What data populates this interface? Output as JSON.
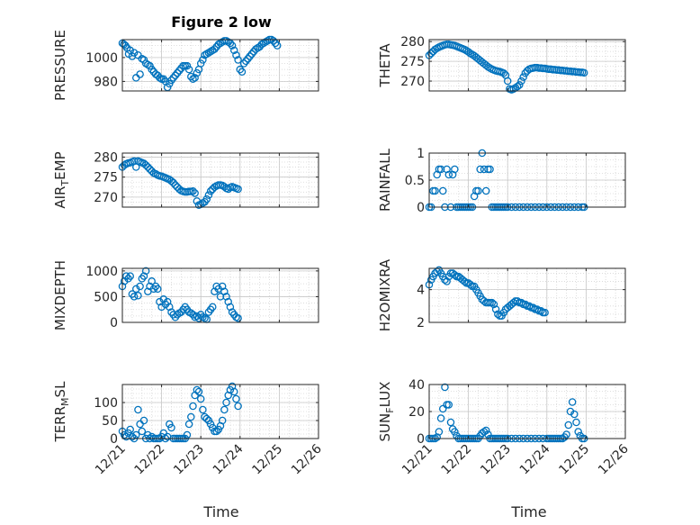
{
  "figure": {
    "title": "Figure 2 low",
    "xlabel": "Time",
    "marker_color": "#0072BD"
  },
  "chart_data": [
    {
      "type": "scatter",
      "name": "pressure",
      "ylabel": "PRESSURE",
      "title": "Figure 2 low",
      "xlim": [
        "12/21",
        "12/26"
      ],
      "ylim": [
        972,
        1015
      ],
      "yticks": [
        980,
        1000
      ],
      "ytick_labels": [
        "980",
        "1000"
      ],
      "xtick_labels": [],
      "x": [
        0.0,
        0.04,
        0.08,
        0.12,
        0.16,
        0.2,
        0.25,
        0.3,
        0.35,
        0.4,
        0.45,
        0.5,
        0.55,
        0.6,
        0.65,
        0.7,
        0.75,
        0.8,
        0.85,
        0.9,
        0.95,
        1.0,
        1.05,
        1.1,
        1.15,
        1.2,
        1.25,
        1.3,
        1.35,
        1.4,
        1.45,
        1.5,
        1.55,
        1.6,
        1.65,
        1.7,
        1.75,
        1.8,
        1.85,
        1.9,
        1.95,
        2.0,
        2.05,
        2.1,
        2.15,
        2.2,
        2.25,
        2.3,
        2.35,
        2.4,
        2.45,
        2.5,
        2.55,
        2.6,
        2.65,
        2.7,
        2.75,
        2.8,
        2.85,
        2.9,
        2.95,
        3.0,
        3.05,
        3.1,
        3.15,
        3.2,
        3.25,
        3.3,
        3.35,
        3.4,
        3.45,
        3.5,
        3.55,
        3.6,
        3.65,
        3.7,
        3.75,
        3.8,
        3.85,
        3.9,
        3.95
      ],
      "y": [
        1012,
        1011,
        1010,
        1008,
        1003,
        1006,
        1001,
        1004,
        983,
        1002,
        986,
        999,
        998,
        995,
        994,
        993,
        990,
        988,
        986,
        985,
        983,
        982,
        982,
        980,
        975,
        978,
        981,
        983,
        985,
        987,
        989,
        991,
        993,
        993,
        993,
        990,
        984,
        982,
        983,
        987,
        990,
        995,
        998,
        1002,
        1003,
        1004,
        1005,
        1006,
        1007,
        1009,
        1011,
        1012,
        1013,
        1014,
        1014,
        1013,
        1012,
        1010,
        1006,
        1002,
        998,
        990,
        988,
        995,
        997,
        999,
        1001,
        1003,
        1005,
        1007,
        1008,
        1009,
        1011,
        1012,
        1013,
        1014,
        1015,
        1015,
        1014,
        1012,
        1010
      ],
      "grid": true
    },
    {
      "type": "scatter",
      "name": "theta",
      "ylabel": "THETA",
      "xlim": [
        "12/21",
        "12/26"
      ],
      "ylim": [
        267.5,
        280.5
      ],
      "yticks": [
        270,
        275,
        280
      ],
      "ytick_labels": [
        "270",
        "275",
        "280"
      ],
      "xtick_labels": [],
      "x": [
        0.0,
        0.05,
        0.1,
        0.15,
        0.2,
        0.25,
        0.3,
        0.35,
        0.4,
        0.45,
        0.5,
        0.55,
        0.6,
        0.65,
        0.7,
        0.75,
        0.8,
        0.85,
        0.9,
        0.95,
        1.0,
        1.05,
        1.1,
        1.15,
        1.2,
        1.25,
        1.3,
        1.35,
        1.4,
        1.45,
        1.5,
        1.55,
        1.6,
        1.65,
        1.7,
        1.75,
        1.8,
        1.85,
        1.9,
        1.95,
        2.0,
        2.05,
        2.1,
        2.15,
        2.2,
        2.25,
        2.3,
        2.35,
        2.4,
        2.45,
        2.5,
        2.55,
        2.6,
        2.65,
        2.7,
        2.75,
        2.8,
        2.85,
        2.9,
        2.95,
        3.0,
        3.05,
        3.1,
        3.15,
        3.2,
        3.25,
        3.3,
        3.35,
        3.4,
        3.45,
        3.5,
        3.55,
        3.6,
        3.65,
        3.7,
        3.75,
        3.8,
        3.85,
        3.9,
        3.95
      ],
      "y": [
        276.5,
        277,
        277.5,
        278,
        278.3,
        278.6,
        278.8,
        279,
        279.2,
        279.3,
        279.3,
        279.2,
        279.1,
        279,
        278.8,
        278.6,
        278.4,
        278.2,
        278,
        277.7,
        277.4,
        277,
        276.7,
        276.4,
        276,
        275.6,
        275.2,
        274.8,
        274.4,
        274,
        273.6,
        273.3,
        273,
        272.8,
        272.6,
        272.5,
        272.4,
        272.2,
        272,
        271.5,
        270,
        268,
        267.8,
        268,
        268.3,
        268.6,
        269,
        270,
        271,
        272,
        272.6,
        273,
        273.2,
        273.3,
        273.4,
        273.4,
        273.3,
        273.3,
        273.2,
        273.2,
        273.1,
        273,
        273,
        272.9,
        272.9,
        272.8,
        272.8,
        272.7,
        272.7,
        272.6,
        272.6,
        272.5,
        272.5,
        272.4,
        272.4,
        272.3,
        272.3,
        272.2,
        272.2,
        272.1
      ],
      "grid": true
    },
    {
      "type": "scatter",
      "name": "airtemp",
      "ylabel": "AIR_TEMP",
      "xlim": [
        "12/21",
        "12/26"
      ],
      "ylim": [
        267.5,
        281
      ],
      "yticks": [
        270,
        275,
        280
      ],
      "ytick_labels": [
        "270",
        "275",
        "280"
      ],
      "xtick_labels": [],
      "x": [
        0.0,
        0.05,
        0.1,
        0.15,
        0.2,
        0.25,
        0.3,
        0.35,
        0.4,
        0.45,
        0.5,
        0.55,
        0.6,
        0.65,
        0.7,
        0.75,
        0.8,
        0.85,
        0.9,
        0.95,
        1.0,
        1.05,
        1.1,
        1.15,
        1.2,
        1.25,
        1.3,
        1.35,
        1.4,
        1.45,
        1.5,
        1.55,
        1.6,
        1.65,
        1.7,
        1.75,
        1.8,
        1.85,
        1.9,
        1.95,
        2.0,
        2.05,
        2.1,
        2.15,
        2.2,
        2.25,
        2.3,
        2.35,
        2.4,
        2.45,
        2.5,
        2.55,
        2.6,
        2.65,
        2.7,
        2.75,
        2.8,
        2.85,
        2.9,
        2.95
      ],
      "y": [
        277.5,
        278,
        278.3,
        278.5,
        278.6,
        278.8,
        279,
        277.5,
        279,
        278.8,
        278.6,
        278.4,
        278,
        277.5,
        277,
        276.5,
        276,
        275.8,
        275.5,
        275.3,
        275.2,
        275,
        274.8,
        274.6,
        274.4,
        274,
        273.6,
        273,
        272.5,
        272,
        271.6,
        271.4,
        271.3,
        271.3,
        271.4,
        271.4,
        271.5,
        271,
        269,
        268,
        268.2,
        268.5,
        268.8,
        269.5,
        270.5,
        271.5,
        272,
        272.5,
        272.8,
        273,
        273,
        272.9,
        272.6,
        272.2,
        272,
        272.4,
        272.6,
        272.4,
        272.2,
        272
      ],
      "grid": true
    },
    {
      "type": "scatter",
      "name": "rainfall",
      "ylabel": "RAINFALL",
      "xlim": [
        "12/21",
        "12/26"
      ],
      "ylim": [
        0,
        1
      ],
      "yticks": [
        0,
        0.5,
        1
      ],
      "ytick_labels": [
        "0",
        "0.5",
        "1"
      ],
      "xtick_labels": [],
      "x": [
        0.0,
        0.05,
        0.1,
        0.15,
        0.2,
        0.25,
        0.3,
        0.35,
        0.4,
        0.45,
        0.5,
        0.55,
        0.6,
        0.65,
        0.7,
        0.75,
        0.8,
        0.85,
        0.9,
        0.95,
        1.0,
        1.05,
        1.1,
        1.15,
        1.2,
        1.25,
        1.3,
        1.35,
        1.4,
        1.45,
        1.5,
        1.55,
        1.6,
        1.65,
        1.7,
        1.75,
        1.8,
        1.85,
        1.9,
        1.95,
        2.0,
        2.1,
        2.2,
        2.3,
        2.4,
        2.5,
        2.6,
        2.7,
        2.8,
        2.9,
        3.0,
        3.1,
        3.2,
        3.3,
        3.4,
        3.5,
        3.6,
        3.7,
        3.8,
        3.9,
        3.95
      ],
      "y": [
        0,
        0,
        0.3,
        0.3,
        0.6,
        0.7,
        0.7,
        0.3,
        0,
        0.7,
        0.6,
        0,
        0.6,
        0.7,
        0,
        0,
        0,
        0,
        0,
        0,
        0,
        0,
        0,
        0.2,
        0.3,
        0.3,
        0.7,
        1.0,
        0.7,
        0.3,
        0.7,
        0.7,
        0,
        0,
        0,
        0,
        0,
        0,
        0,
        0,
        0,
        0,
        0,
        0,
        0,
        0,
        0,
        0,
        0,
        0,
        0,
        0,
        0,
        0,
        0,
        0,
        0,
        0,
        0,
        0,
        0
      ],
      "grid": true
    },
    {
      "type": "scatter",
      "name": "mixdepth",
      "ylabel": "MIXDEPTH",
      "xlim": [
        "12/21",
        "12/26"
      ],
      "ylim": [
        0,
        1050
      ],
      "yticks": [
        0,
        500,
        1000
      ],
      "ytick_labels": [
        "0",
        "500",
        "1000"
      ],
      "xtick_labels": [],
      "x": [
        0.0,
        0.05,
        0.1,
        0.15,
        0.2,
        0.25,
        0.3,
        0.35,
        0.4,
        0.45,
        0.5,
        0.55,
        0.6,
        0.65,
        0.7,
        0.75,
        0.8,
        0.85,
        0.9,
        0.95,
        1.0,
        1.05,
        1.1,
        1.15,
        1.2,
        1.25,
        1.3,
        1.35,
        1.4,
        1.45,
        1.5,
        1.55,
        1.6,
        1.65,
        1.7,
        1.75,
        1.8,
        1.85,
        1.9,
        1.95,
        2.0,
        2.05,
        2.1,
        2.15,
        2.2,
        2.25,
        2.3,
        2.35,
        2.4,
        2.45,
        2.5,
        2.55,
        2.6,
        2.65,
        2.7,
        2.75,
        2.8,
        2.85,
        2.9,
        2.95
      ],
      "y": [
        700,
        800,
        900,
        850,
        900,
        550,
        500,
        650,
        520,
        700,
        850,
        900,
        1000,
        600,
        700,
        800,
        650,
        700,
        650,
        400,
        300,
        450,
        350,
        400,
        300,
        200,
        150,
        100,
        150,
        180,
        200,
        250,
        300,
        250,
        200,
        180,
        150,
        100,
        120,
        80,
        150,
        100,
        80,
        60,
        200,
        250,
        300,
        600,
        700,
        650,
        500,
        700,
        600,
        500,
        400,
        300,
        200,
        150,
        100,
        80
      ],
      "grid": true
    },
    {
      "type": "scatter",
      "name": "h2omixra",
      "ylabel": "H2OMIXRA",
      "xlim": [
        "12/21",
        "12/26"
      ],
      "ylim": [
        2,
        5.3
      ],
      "yticks": [
        2,
        4
      ],
      "ytick_labels": [
        "2",
        "4"
      ],
      "xtick_labels": [],
      "x": [
        0.0,
        0.05,
        0.1,
        0.15,
        0.2,
        0.25,
        0.3,
        0.35,
        0.4,
        0.45,
        0.5,
        0.55,
        0.6,
        0.65,
        0.7,
        0.75,
        0.8,
        0.85,
        0.9,
        0.95,
        1.0,
        1.05,
        1.1,
        1.15,
        1.2,
        1.25,
        1.3,
        1.35,
        1.4,
        1.45,
        1.5,
        1.55,
        1.6,
        1.65,
        1.7,
        1.75,
        1.8,
        1.85,
        1.9,
        1.95,
        2.0,
        2.05,
        2.1,
        2.15,
        2.2,
        2.25,
        2.3,
        2.35,
        2.4,
        2.45,
        2.5,
        2.55,
        2.6,
        2.65,
        2.7,
        2.75,
        2.8,
        2.85,
        2.9,
        2.95
      ],
      "y": [
        4.3,
        4.6,
        4.8,
        5.0,
        5.1,
        5.2,
        5.0,
        4.8,
        4.6,
        4.5,
        4.8,
        5.0,
        5.0,
        4.9,
        4.8,
        4.8,
        4.7,
        4.6,
        4.5,
        4.4,
        4.4,
        4.3,
        4.2,
        4.2,
        4.0,
        3.8,
        3.6,
        3.4,
        3.3,
        3.2,
        3.2,
        3.2,
        3.2,
        3.1,
        2.8,
        2.5,
        2.4,
        2.4,
        2.6,
        2.8,
        2.9,
        3.0,
        3.1,
        3.2,
        3.3,
        3.3,
        3.2,
        3.2,
        3.1,
        3.1,
        3.0,
        3.0,
        2.9,
        2.9,
        2.8,
        2.8,
        2.7,
        2.7,
        2.6,
        2.6
      ],
      "grid": true
    },
    {
      "type": "scatter",
      "name": "terrmsl",
      "ylabel": "TERR_MSL",
      "xlim": [
        "12/21",
        "12/26"
      ],
      "ylim": [
        0,
        150
      ],
      "yticks": [
        0,
        50,
        100
      ],
      "ytick_labels": [
        "0",
        "50",
        "100"
      ],
      "xtick_labels": [
        "12/21",
        "12/22",
        "12/23",
        "12/24",
        "12/25",
        "12/26"
      ],
      "x": [
        0.0,
        0.05,
        0.1,
        0.15,
        0.2,
        0.25,
        0.3,
        0.35,
        0.4,
        0.45,
        0.5,
        0.55,
        0.6,
        0.65,
        0.7,
        0.75,
        0.8,
        0.85,
        0.9,
        0.95,
        1.0,
        1.05,
        1.1,
        1.15,
        1.2,
        1.25,
        1.3,
        1.35,
        1.4,
        1.45,
        1.5,
        1.55,
        1.6,
        1.65,
        1.7,
        1.75,
        1.8,
        1.85,
        1.9,
        1.95,
        2.0,
        2.05,
        2.1,
        2.15,
        2.2,
        2.25,
        2.3,
        2.35,
        2.4,
        2.45,
        2.5,
        2.55,
        2.6,
        2.65,
        2.7,
        2.75,
        2.8,
        2.85,
        2.9,
        2.95
      ],
      "y": [
        20,
        10,
        5,
        15,
        25,
        5,
        0,
        10,
        80,
        40,
        20,
        50,
        0,
        10,
        0,
        5,
        0,
        0,
        0,
        0,
        5,
        15,
        0,
        5,
        40,
        30,
        0,
        0,
        0,
        0,
        0,
        0,
        0,
        10,
        40,
        60,
        90,
        120,
        135,
        130,
        110,
        80,
        60,
        55,
        50,
        40,
        30,
        20,
        20,
        25,
        35,
        50,
        80,
        100,
        120,
        135,
        145,
        130,
        110,
        90
      ],
      "grid": true
    },
    {
      "type": "scatter",
      "name": "sunflux",
      "ylabel": "SUN_FLUX",
      "xlim": [
        "12/21",
        "12/26"
      ],
      "ylim": [
        0,
        40
      ],
      "yticks": [
        0,
        20,
        40
      ],
      "ytick_labels": [
        "0",
        "20",
        "40"
      ],
      "xtick_labels": [
        "12/21",
        "12/22",
        "12/23",
        "12/24",
        "12/25",
        "12/26"
      ],
      "x": [
        0.0,
        0.05,
        0.1,
        0.15,
        0.2,
        0.25,
        0.3,
        0.35,
        0.4,
        0.45,
        0.5,
        0.55,
        0.6,
        0.65,
        0.7,
        0.75,
        0.8,
        0.85,
        0.9,
        0.95,
        1.0,
        1.05,
        1.1,
        1.15,
        1.2,
        1.25,
        1.3,
        1.35,
        1.4,
        1.45,
        1.5,
        1.55,
        1.6,
        1.65,
        1.7,
        1.75,
        1.8,
        1.85,
        1.9,
        1.95,
        2.0,
        2.1,
        2.2,
        2.3,
        2.4,
        2.5,
        2.6,
        2.7,
        2.8,
        2.9,
        3.0,
        3.05,
        3.1,
        3.15,
        3.2,
        3.25,
        3.3,
        3.35,
        3.4,
        3.45,
        3.5,
        3.55,
        3.6,
        3.65,
        3.7,
        3.75,
        3.8,
        3.85,
        3.9,
        3.95
      ],
      "y": [
        0,
        0,
        0,
        0,
        1,
        5,
        15,
        22,
        38,
        25,
        25,
        12,
        7,
        5,
        2,
        0,
        0,
        0,
        0,
        0,
        0,
        0,
        0,
        0,
        0,
        0,
        2,
        4,
        5,
        6,
        3,
        0,
        0,
        0,
        0,
        0,
        0,
        0,
        0,
        0,
        0,
        0,
        0,
        0,
        0,
        0,
        0,
        0,
        0,
        0,
        0,
        0,
        0,
        0,
        0,
        0,
        0,
        0,
        0,
        1,
        3,
        10,
        20,
        27,
        18,
        12,
        5,
        2,
        0,
        0
      ],
      "grid": true
    }
  ]
}
